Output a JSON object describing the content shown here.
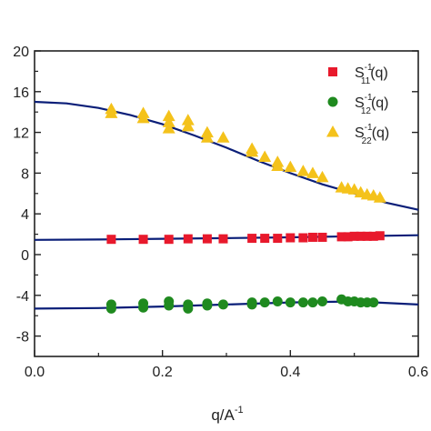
{
  "chart_data": {
    "type": "scatter",
    "xlabel": "q/A",
    "xlabel_superscript": "-1",
    "xlim": [
      0.0,
      0.6
    ],
    "ylim": [
      -10,
      20
    ],
    "xticks": [
      "0.0",
      "0.2",
      "0.4",
      "0.6"
    ],
    "yticks": [
      "-8",
      "-4",
      "0",
      "4",
      "8",
      "12",
      "16",
      "20"
    ],
    "grid": false,
    "legend_position": "top-right",
    "series": [
      {
        "name": "S11(q)",
        "label_main": "S",
        "label_sup": "-1",
        "label_sub": "11",
        "label_arg": "(q)",
        "marker": "square",
        "color": "#e8192c",
        "x": [
          0.12,
          0.17,
          0.21,
          0.24,
          0.27,
          0.295,
          0.34,
          0.36,
          0.38,
          0.4,
          0.42,
          0.435,
          0.45,
          0.48,
          0.49,
          0.5,
          0.51,
          0.52,
          0.53,
          0.54
        ],
        "y": [
          1.5,
          1.5,
          1.5,
          1.55,
          1.55,
          1.55,
          1.6,
          1.6,
          1.6,
          1.65,
          1.65,
          1.7,
          1.7,
          1.75,
          1.75,
          1.8,
          1.8,
          1.8,
          1.8,
          1.85
        ]
      },
      {
        "name": "S12(q)",
        "label_main": "S",
        "label_sup": "-1",
        "label_sub": "12",
        "label_arg": "(q)",
        "marker": "circle",
        "color": "#1f8a1f",
        "x": [
          0.12,
          0.12,
          0.17,
          0.17,
          0.21,
          0.21,
          0.24,
          0.24,
          0.27,
          0.27,
          0.295,
          0.34,
          0.34,
          0.36,
          0.38,
          0.4,
          0.42,
          0.435,
          0.45,
          0.48,
          0.49,
          0.5,
          0.51,
          0.52,
          0.53
        ],
        "y": [
          -4.9,
          -5.3,
          -4.8,
          -5.2,
          -4.6,
          -5.0,
          -4.9,
          -5.3,
          -4.8,
          -5.0,
          -4.9,
          -4.7,
          -4.9,
          -4.7,
          -4.6,
          -4.7,
          -4.7,
          -4.7,
          -4.6,
          -4.4,
          -4.6,
          -4.6,
          -4.7,
          -4.7,
          -4.7
        ]
      },
      {
        "name": "S22(q)",
        "label_main": "S",
        "label_sup": "-1",
        "label_sub": "22",
        "label_arg": "(q)",
        "marker": "triangle",
        "color": "#f4c21b",
        "x": [
          0.12,
          0.12,
          0.17,
          0.17,
          0.21,
          0.21,
          0.21,
          0.24,
          0.24,
          0.27,
          0.27,
          0.295,
          0.34,
          0.34,
          0.36,
          0.38,
          0.38,
          0.4,
          0.42,
          0.435,
          0.45,
          0.48,
          0.49,
          0.5,
          0.51,
          0.52,
          0.53,
          0.54
        ],
        "y": [
          14.3,
          13.9,
          13.9,
          13.4,
          13.6,
          13.0,
          12.4,
          13.2,
          12.6,
          12.0,
          11.5,
          11.5,
          10.4,
          10.1,
          9.6,
          9.1,
          8.7,
          8.6,
          8.2,
          8.0,
          7.6,
          6.6,
          6.5,
          6.4,
          6.1,
          5.9,
          5.8,
          5.6
        ]
      }
    ],
    "fit_curves": [
      {
        "color": "#0a1e78",
        "x": [
          0.0,
          0.05,
          0.1,
          0.15,
          0.2,
          0.25,
          0.3,
          0.35,
          0.4,
          0.45,
          0.5,
          0.55,
          0.6
        ],
        "y": [
          15.0,
          14.85,
          14.4,
          13.7,
          12.8,
          11.7,
          10.5,
          9.2,
          8.0,
          6.9,
          6.0,
          5.1,
          4.4
        ]
      },
      {
        "color": "#0a1e78",
        "x": [
          0.0,
          0.1,
          0.2,
          0.3,
          0.4,
          0.5,
          0.6
        ],
        "y": [
          1.45,
          1.48,
          1.55,
          1.62,
          1.7,
          1.8,
          1.9
        ]
      },
      {
        "color": "#0a1e78",
        "x": [
          0.0,
          0.1,
          0.2,
          0.3,
          0.4,
          0.5,
          0.6
        ],
        "y": [
          -5.3,
          -5.25,
          -5.1,
          -4.9,
          -4.7,
          -4.6,
          -4.9
        ]
      }
    ]
  }
}
